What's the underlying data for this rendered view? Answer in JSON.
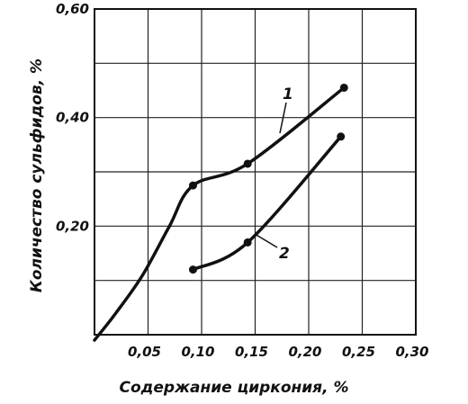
{
  "chart_data": {
    "type": "line",
    "xlabel": "Содержание циркония, %",
    "ylabel": "Количество сульфидов, %",
    "xlim": [
      0,
      0.3
    ],
    "ylim": [
      0,
      0.6
    ],
    "x_ticks": [
      0.05,
      0.1,
      0.15,
      0.2,
      0.25,
      0.3
    ],
    "x_tick_labels": [
      "0,05",
      "0,10",
      "0,15",
      "0,20",
      "0,25",
      "0,30"
    ],
    "y_ticks": [
      0.2,
      0.4,
      0.6
    ],
    "y_tick_labels": [
      "0,20",
      "0,40",
      "0,60"
    ],
    "grid": true,
    "series": [
      {
        "name": "1",
        "points": [
          [
            0.092,
            0.275
          ],
          [
            0.143,
            0.315
          ],
          [
            0.233,
            0.455
          ]
        ],
        "extension": [
          [
            0.0,
            -0.01
          ],
          [
            0.02,
            0.04
          ],
          [
            0.045,
            0.11
          ],
          [
            0.07,
            0.2
          ],
          [
            0.092,
            0.275
          ]
        ]
      },
      {
        "name": "2",
        "points": [
          [
            0.092,
            0.12
          ],
          [
            0.143,
            0.17
          ],
          [
            0.23,
            0.365
          ]
        ]
      }
    ]
  }
}
